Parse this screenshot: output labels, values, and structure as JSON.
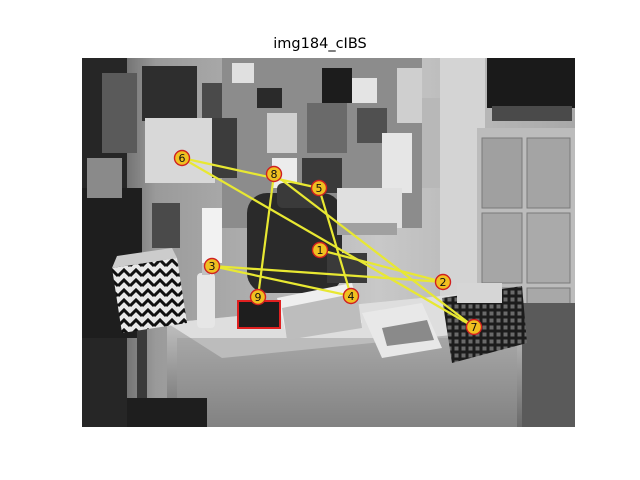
{
  "title": "img184_cIBS",
  "scene": {
    "type": "grayscale-photo",
    "content_icon": "office-desk-photo"
  },
  "overlay": {
    "fixation_color": "#f0c020",
    "fixation_edge": "#d02020",
    "scanpath_color": "#e8e832",
    "target_box_color": "#e02020",
    "fixations": [
      {
        "label": "1"
      },
      {
        "label": "2"
      },
      {
        "label": "3"
      },
      {
        "label": "4"
      },
      {
        "label": "5"
      },
      {
        "label": "6"
      },
      {
        "label": "7"
      },
      {
        "label": "8"
      },
      {
        "label": "9"
      }
    ]
  }
}
